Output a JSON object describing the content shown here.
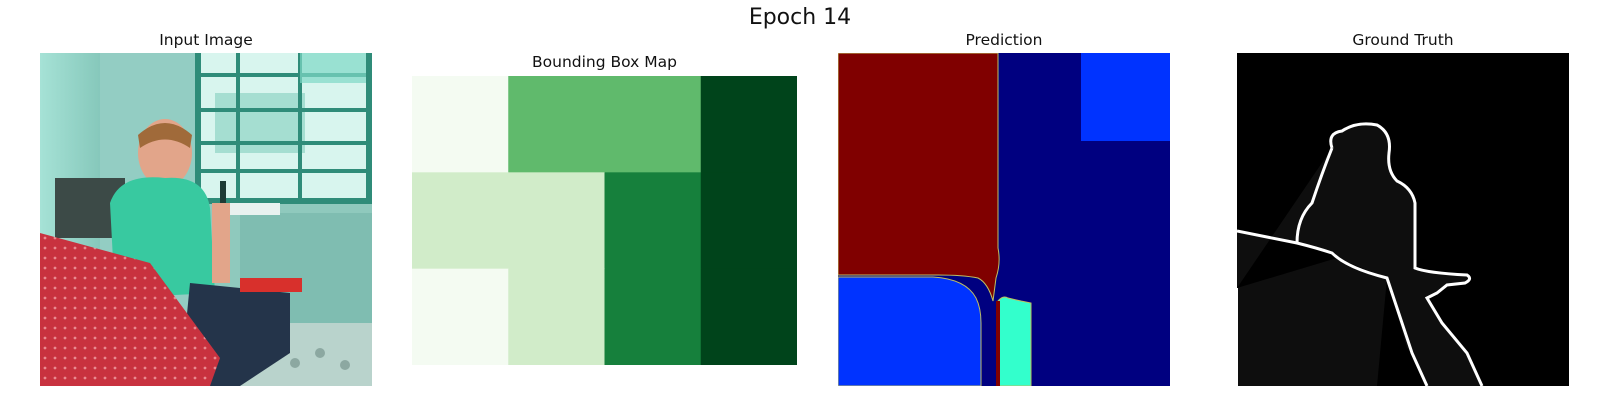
{
  "figure": {
    "title": "Epoch 14"
  },
  "panels": [
    {
      "id": "input",
      "title": "Input Image",
      "image_description_name": "input-image"
    },
    {
      "id": "bbox",
      "title": "Bounding Box Map",
      "grid": {
        "rows": 3,
        "cols": 4,
        "colors": [
          [
            "#f4fbf2",
            "#60ba6c",
            "#60ba6c",
            "#00441b"
          ],
          [
            "#d1ecc9",
            "#d1ecc9",
            "#16803c",
            "#00441b"
          ],
          [
            "#f4fbf2",
            "#d1ecc9",
            "#16803c",
            "#00441b"
          ]
        ]
      }
    },
    {
      "id": "prediction",
      "title": "Prediction",
      "colors": {
        "dark_red": "#800000",
        "dark_blue": "#000080",
        "blue": "#0033ff",
        "cyan": "#33ffcc",
        "outline": "#bfbf60"
      }
    },
    {
      "id": "ground_truth",
      "title": "Ground Truth",
      "colors": {
        "background": "#000000",
        "foreground": "#0e0e0e",
        "edge": "#ffffff"
      }
    }
  ]
}
